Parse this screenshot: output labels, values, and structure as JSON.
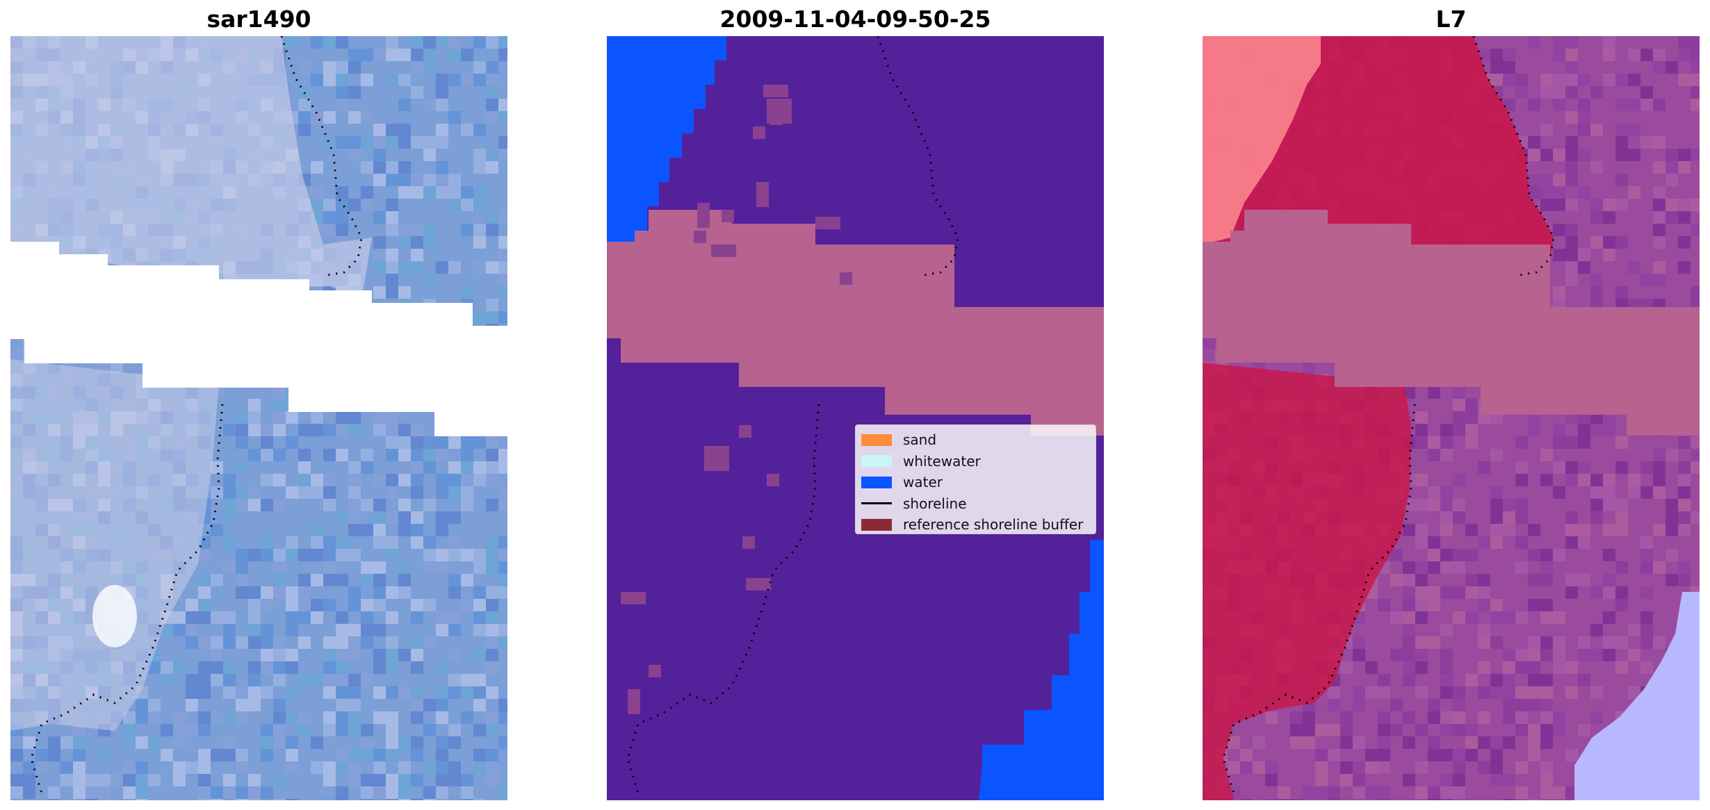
{
  "panels": [
    {
      "title": "sar1490"
    },
    {
      "title": "2009-11-04-09-50-25"
    },
    {
      "title": "L7"
    }
  ],
  "legend": {
    "items": [
      {
        "label": "sand",
        "kind": "patch",
        "color": "#ff8c3a"
      },
      {
        "label": "whitewater",
        "kind": "patch",
        "color": "#c8f5f8"
      },
      {
        "label": "water",
        "kind": "patch",
        "color": "#0a55ff"
      },
      {
        "label": "shoreline",
        "kind": "line",
        "color": "#000000"
      },
      {
        "label": "reference shoreline buffer",
        "kind": "patch",
        "color": "#8b2a35"
      }
    ]
  },
  "colors": {
    "sar_base": "#7b9fd6",
    "sar_sand": "#c8cce8",
    "classification_background": "#53219a",
    "classification_water": "#0a55ff",
    "reference_buffer_overlay": "#b7628f",
    "l7_sand": "#c8174b",
    "l7_other": "#9a4b9e",
    "l7_bright": "#ff8a92",
    "l7_water": "#b7b8ff"
  },
  "icons": [
    "shoreline-dotted-line"
  ]
}
